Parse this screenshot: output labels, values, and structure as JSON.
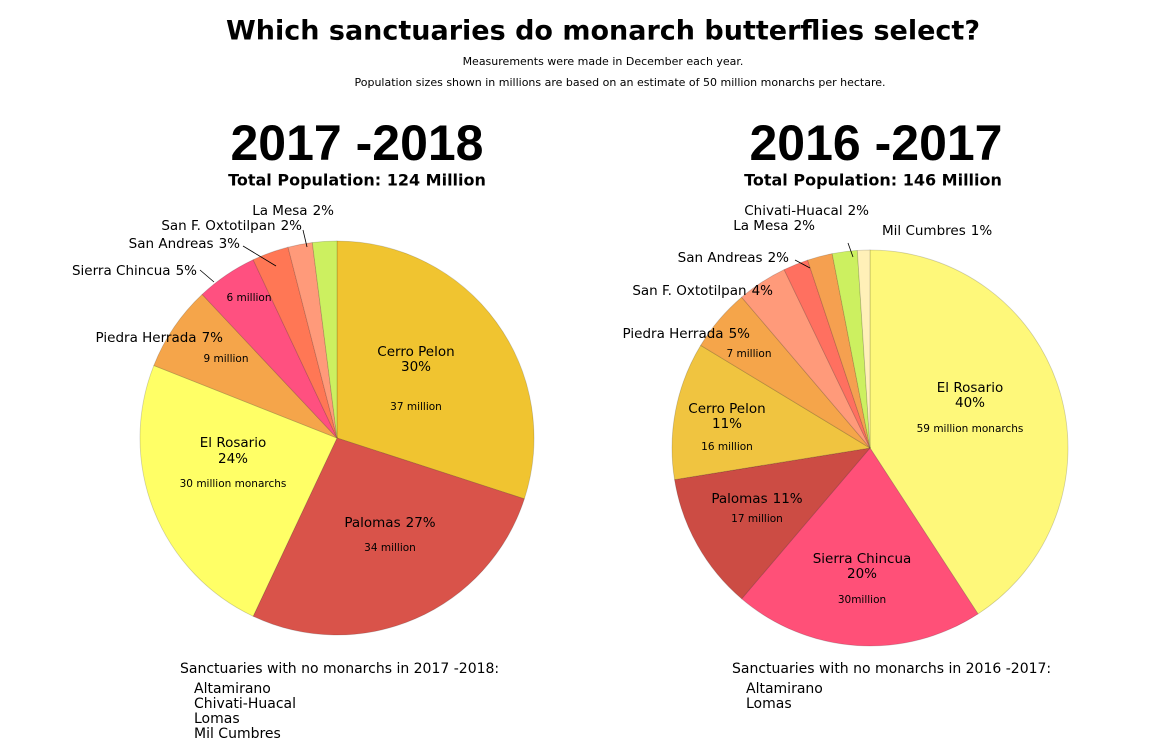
{
  "header": {
    "title": "Which sanctuaries do monarch butterflies select?",
    "notes": [
      "Measurements were made in December each year.",
      "Population sizes shown in millions are based on an estimate of 50 million monarchs per hectare."
    ]
  },
  "chart_data": [
    {
      "type": "pie",
      "title": "2017 -2018",
      "subtitle": "Total Population: 124 Million",
      "categories": [
        "Cerro Pelon",
        "Palomas",
        "El Rosario",
        "Piedra Herrada",
        "Sierra Chincua",
        "San Andreas",
        "San F. Oxtotilpan",
        "La Mesa"
      ],
      "values": [
        30,
        27,
        24,
        7,
        5,
        3,
        2,
        2
      ],
      "value_labels": [
        "30%",
        "27%",
        "24%",
        "7%",
        "5%",
        "3%",
        "2%",
        "2%"
      ],
      "population_labels": [
        "37 million",
        "34 million",
        "30 million monarchs",
        "9 million",
        "6 million",
        null,
        null,
        null
      ],
      "colors": [
        "#f0c430",
        "#d9534a",
        "#ffff66",
        "#f5a54a",
        "#ff5080",
        "#ff7755",
        "#ff9a7a",
        "#ccf060"
      ],
      "note": "Sanctuaries with no monarchs in 2017 -2018:",
      "note_items": [
        "Altamirano",
        "Chivati-Huacal",
        "Lomas",
        "Mil Cumbres"
      ]
    },
    {
      "type": "pie",
      "title": "2016 -2017",
      "subtitle": "Total Population: 146 Million",
      "categories": [
        "El Rosario",
        "Sierra Chincua",
        "Palomas",
        "Cerro Pelon",
        "Piedra Herrada",
        "San F. Oxtotilpan",
        "San Andreas",
        "La Mesa",
        "Chivati-Huacal",
        "Mil Cumbres"
      ],
      "values": [
        40,
        20,
        11,
        11,
        5,
        4,
        2,
        2,
        2,
        1
      ],
      "value_labels": [
        "40%",
        "20%",
        "11%",
        "11%",
        "5%",
        "4%",
        "2%",
        "2%",
        "2%",
        "1%"
      ],
      "population_labels": [
        "59 million monarchs",
        "30million",
        "17 million",
        "16 million",
        "7 million",
        null,
        null,
        null,
        null,
        null
      ],
      "colors": [
        "#fef87a",
        "#ff5078",
        "#cc4c44",
        "#f0c440",
        "#f5a54a",
        "#ff9a7a",
        "#ff7060",
        "#f5a050",
        "#ccf060",
        "#fff0b8"
      ],
      "note": "Sanctuaries with no monarchs in 2016 -2017:",
      "note_items": [
        "Altamirano",
        "Lomas"
      ]
    }
  ]
}
